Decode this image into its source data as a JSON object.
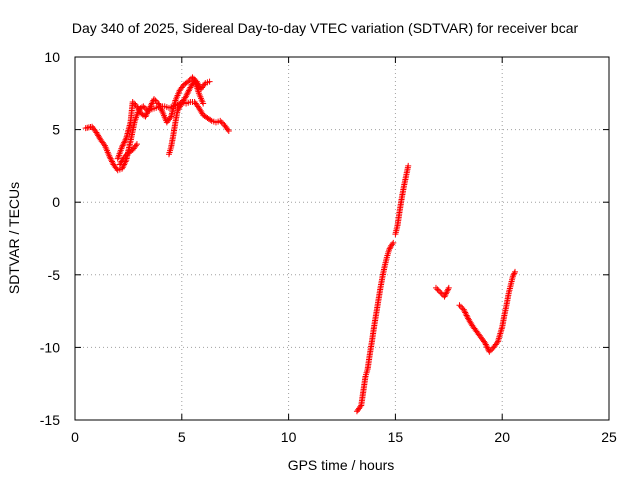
{
  "chart_data": {
    "type": "scatter",
    "title": "Day 340 of 2025, Sidereal Day-to-day VTEC variation (SDTVAR) for receiver bcar",
    "xlabel": "GPS time / hours",
    "ylabel": "SDTVAR / TECUs",
    "xlim": [
      0,
      25
    ],
    "ylim": [
      -15,
      10
    ],
    "x_ticks": [
      "0",
      "5",
      "10",
      "15",
      "20",
      "25"
    ],
    "y_ticks": [
      "10",
      "5",
      "0",
      "-5",
      "-10",
      "-15"
    ],
    "grid": true,
    "marker": "plus",
    "color": "#ff0000",
    "series": [
      {
        "x": [
          0.5,
          0.8,
          1.0,
          1.2,
          1.4,
          1.6,
          1.8,
          2.0,
          2.2,
          2.4,
          2.6,
          2.8,
          3.0,
          3.2,
          3.4,
          3.6,
          3.8,
          4.0,
          4.2,
          4.4,
          4.6,
          4.8,
          5.0,
          5.2,
          5.4,
          5.6,
          5.8,
          6.0,
          6.2,
          6.4,
          6.6,
          6.8,
          7.0,
          7.2
        ],
        "y": [
          5.1,
          5.2,
          4.8,
          4.3,
          3.9,
          3.2,
          2.6,
          2.2,
          2.3,
          2.9,
          4.2,
          5.6,
          6.4,
          6.6,
          6.3,
          6.4,
          6.5,
          6.6,
          6.6,
          6.5,
          6.6,
          6.7,
          6.9,
          6.8,
          6.9,
          6.9,
          6.5,
          6.0,
          5.8,
          5.6,
          5.5,
          5.6,
          5.3,
          4.9
        ]
      },
      {
        "x": [
          2.0,
          2.2,
          2.4,
          2.6,
          2.7,
          2.9,
          3.1,
          3.3,
          3.5,
          3.7,
          3.9,
          4.1,
          4.3,
          4.5,
          4.7,
          4.9,
          5.1,
          5.3,
          5.5,
          5.7,
          5.9,
          6.1,
          6.3
        ],
        "y": [
          3.0,
          3.8,
          4.4,
          5.5,
          6.9,
          6.6,
          6.1,
          5.9,
          6.5,
          7.1,
          6.8,
          6.2,
          5.5,
          5.9,
          7.0,
          7.7,
          8.1,
          8.3,
          8.6,
          8.3,
          7.8,
          8.2,
          8.3
        ]
      },
      {
        "x": [
          4.4,
          4.5,
          4.6,
          4.7,
          4.8,
          5.0,
          5.2,
          5.4,
          5.6,
          5.8,
          6.0
        ],
        "y": [
          3.3,
          3.8,
          4.6,
          5.5,
          6.3,
          6.8,
          7.3,
          7.9,
          8.4,
          7.5,
          6.8
        ]
      },
      {
        "x": [
          2.1,
          2.3,
          2.5,
          2.7,
          2.9
        ],
        "y": [
          2.6,
          3.1,
          3.4,
          3.6,
          4.0
        ]
      },
      {
        "x": [
          13.2,
          13.4,
          13.6,
          13.7,
          13.8,
          13.9,
          14.0,
          14.1,
          14.2,
          14.3,
          14.4,
          14.5,
          14.6,
          14.7,
          14.8,
          14.9
        ],
        "y": [
          -14.4,
          -14.0,
          -12.0,
          -11.5,
          -10.5,
          -9.6,
          -8.6,
          -7.7,
          -6.8,
          -5.9,
          -5.1,
          -4.4,
          -3.8,
          -3.3,
          -3.0,
          -2.8
        ]
      },
      {
        "x": [
          15.0,
          15.1,
          15.2,
          15.3,
          15.4,
          15.5,
          15.6
        ],
        "y": [
          -2.2,
          -1.6,
          -0.6,
          0.3,
          1.1,
          1.8,
          2.5
        ]
      },
      {
        "x": [
          16.9,
          17.1,
          17.3,
          17.5
        ],
        "y": [
          -5.9,
          -6.2,
          -6.5,
          -5.9
        ]
      },
      {
        "x": [
          18.0,
          18.2,
          18.4,
          18.6,
          18.8,
          19.0,
          19.2,
          19.4,
          19.6,
          19.8,
          20.0,
          20.1,
          20.2,
          20.3,
          20.4,
          20.5,
          20.6
        ],
        "y": [
          -7.1,
          -7.4,
          -8.0,
          -8.5,
          -8.9,
          -9.3,
          -9.7,
          -10.3,
          -10.0,
          -9.6,
          -8.6,
          -7.8,
          -7.1,
          -6.3,
          -5.7,
          -5.1,
          -4.8
        ]
      }
    ]
  }
}
